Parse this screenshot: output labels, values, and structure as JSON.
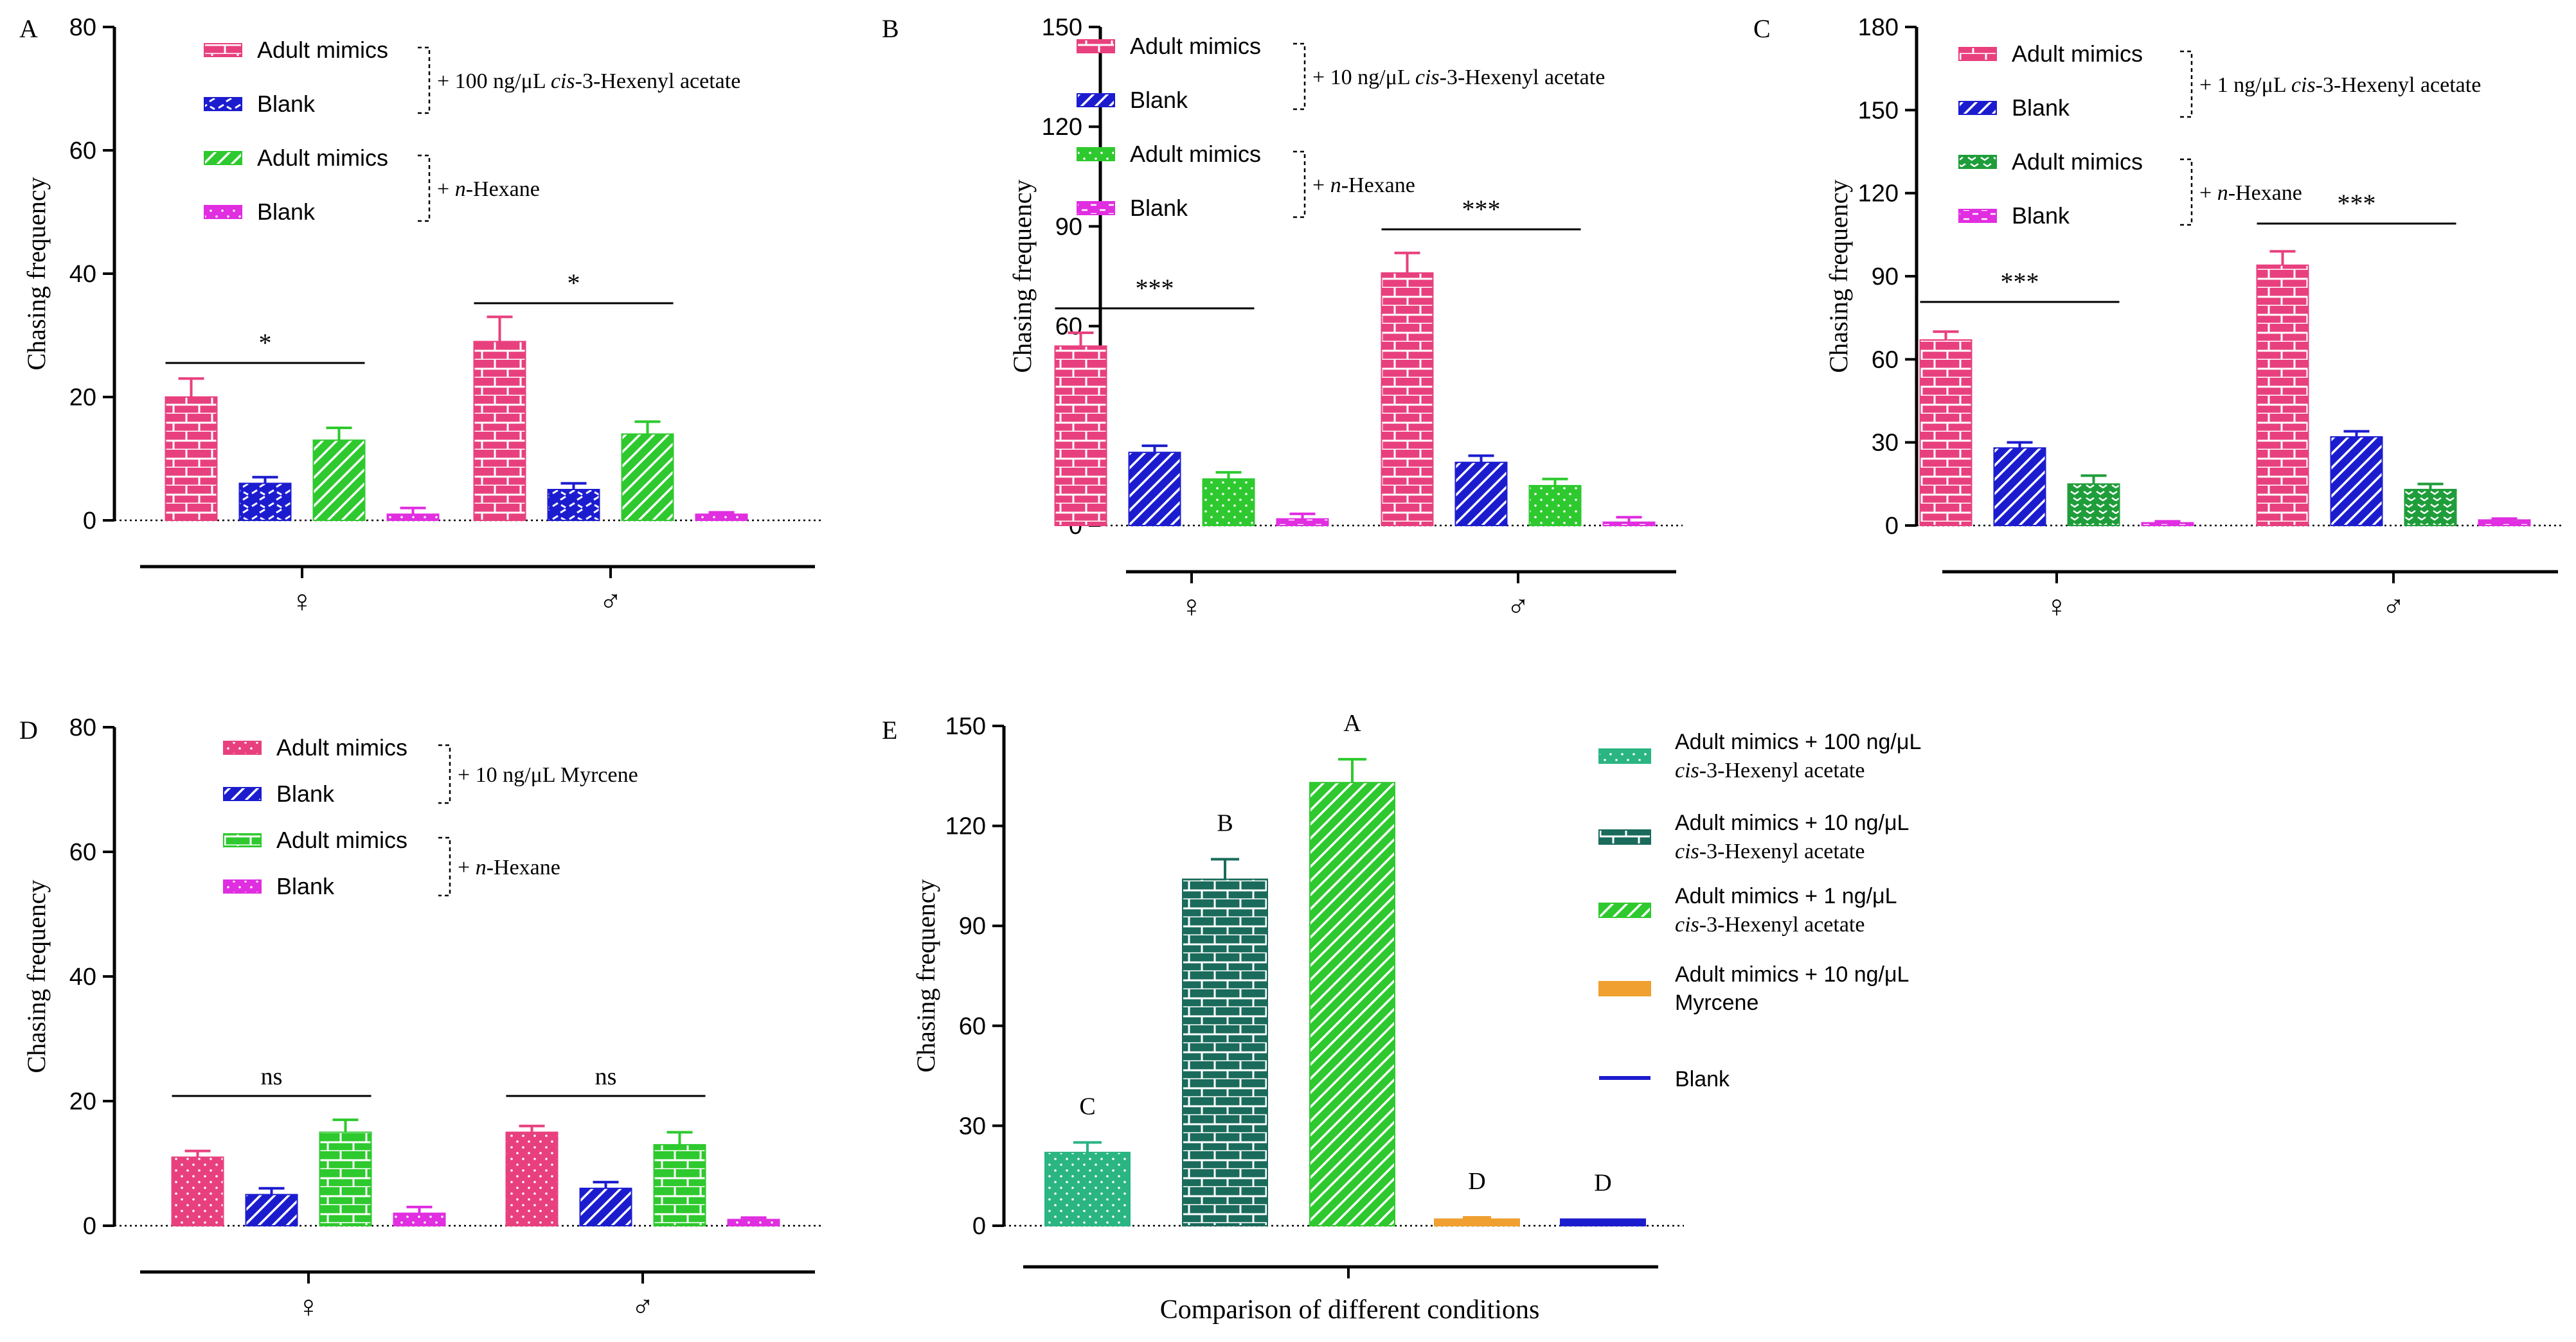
{
  "colors": {
    "pink": "#e8407e",
    "blue": "#1c1ccf",
    "green": "#2ec92e",
    "magenta": "#e02ee0",
    "teal": "#2ab583",
    "darkteal": "#1a6b5b",
    "orange": "#f0a030",
    "axis": "#000000"
  },
  "charts": [
    {
      "panel": "A",
      "type": "bar",
      "ylabel": "Chasing frequency",
      "ylim": [
        0,
        80
      ],
      "yticks": [
        0,
        20,
        40,
        60,
        80
      ],
      "groups": [
        "♀",
        "♂"
      ],
      "series": [
        {
          "name": "Adult mimics",
          "color": "pink",
          "pattern": "brick",
          "values": [
            20,
            29
          ],
          "errors": [
            3,
            4
          ]
        },
        {
          "name": "Blank",
          "color": "blue",
          "pattern": "weave",
          "values": [
            6,
            5
          ],
          "errors": [
            1,
            1
          ]
        },
        {
          "name": "Adult mimics",
          "color": "green",
          "pattern": "diag",
          "values": [
            13,
            14
          ],
          "errors": [
            2,
            2
          ]
        },
        {
          "name": "Blank",
          "color": "magenta",
          "pattern": "dots",
          "values": [
            1,
            1
          ],
          "errors": [
            1,
            0.3
          ]
        }
      ],
      "brackets": [
        "+ 100 ng/μL cis-3-Hexenyl acetate",
        "+ n-Hexane"
      ],
      "significance": [
        "*",
        "*"
      ]
    },
    {
      "panel": "B",
      "type": "bar",
      "ylabel": "Chasing frequency",
      "ylim": [
        0,
        150
      ],
      "yticks": [
        0,
        30,
        60,
        90,
        120,
        150
      ],
      "groups": [
        "♀",
        "♂"
      ],
      "series": [
        {
          "name": "Adult mimics",
          "color": "pink",
          "pattern": "brick",
          "values": [
            54,
            76
          ],
          "errors": [
            4,
            6
          ]
        },
        {
          "name": "Blank",
          "color": "blue",
          "pattern": "diag",
          "values": [
            22,
            19
          ],
          "errors": [
            2,
            2
          ]
        },
        {
          "name": "Adult mimics",
          "color": "green",
          "pattern": "dots",
          "values": [
            14,
            12
          ],
          "errors": [
            2,
            2
          ]
        },
        {
          "name": "Blank",
          "color": "magenta",
          "pattern": "hdash",
          "values": [
            2,
            1
          ],
          "errors": [
            1.5,
            1.5
          ]
        }
      ],
      "brackets": [
        "+ 10 ng/μL cis-3-Hexenyl acetate",
        "+ n-Hexane"
      ],
      "significance": [
        "***",
        "***"
      ]
    },
    {
      "panel": "C",
      "type": "bar",
      "ylabel": "Chasing frequency",
      "ylim": [
        0,
        180
      ],
      "yticks": [
        0,
        30,
        60,
        90,
        120,
        150,
        180
      ],
      "groups": [
        "♀",
        "♂"
      ],
      "series": [
        {
          "name": "Adult mimics",
          "color": "pink",
          "pattern": "brick",
          "values": [
            67,
            94
          ],
          "errors": [
            3,
            5
          ]
        },
        {
          "name": "Blank",
          "color": "blue",
          "pattern": "diag",
          "values": [
            28,
            32
          ],
          "errors": [
            2,
            2
          ]
        },
        {
          "name": "Adult mimics",
          "color": "darkgreen",
          "pattern": "check",
          "values": [
            15,
            13
          ],
          "errors": [
            3,
            2
          ]
        },
        {
          "name": "Blank",
          "color": "magenta",
          "pattern": "hdash",
          "values": [
            1,
            2
          ],
          "errors": [
            0.5,
            0.5
          ]
        }
      ],
      "brackets": [
        "+ 1 ng/μL cis-3-Hexenyl acetate",
        "+ n-Hexane"
      ],
      "significance": [
        "***",
        "***"
      ]
    },
    {
      "panel": "D",
      "type": "bar",
      "ylabel": "Chasing frequency",
      "ylim": [
        0,
        80
      ],
      "yticks": [
        0,
        20,
        40,
        60,
        80
      ],
      "groups": [
        "♀",
        "♂"
      ],
      "series": [
        {
          "name": "Adult mimics",
          "color": "pink",
          "pattern": "dots",
          "values": [
            11,
            15
          ],
          "errors": [
            1,
            1
          ]
        },
        {
          "name": "Blank",
          "color": "blue",
          "pattern": "diag",
          "values": [
            5,
            6
          ],
          "errors": [
            1,
            1
          ]
        },
        {
          "name": "Adult mimics",
          "color": "green",
          "pattern": "brick",
          "values": [
            15,
            13
          ],
          "errors": [
            2,
            2
          ]
        },
        {
          "name": "Blank",
          "color": "magenta",
          "pattern": "dots",
          "values": [
            2,
            1
          ],
          "errors": [
            1,
            0.3
          ]
        }
      ],
      "brackets": [
        "+ 10 ng/μL Myrcene",
        "+ n-Hexane"
      ],
      "significance": [
        "ns",
        "ns"
      ]
    },
    {
      "panel": "E",
      "type": "bar",
      "ylabel": "Chasing frequency",
      "xlabel": "Comparison of different conditions",
      "ylim": [
        0,
        150
      ],
      "yticks": [
        0,
        30,
        60,
        90,
        120,
        150
      ],
      "categories": [
        {
          "name": "Adult mimics + 100 ng/μL cis-3-Hexenyl acetate",
          "color": "teal",
          "pattern": "dots",
          "value": 22,
          "error": 3,
          "letter": "C"
        },
        {
          "name": "Adult mimics + 10 ng/μL cis-3-Hexenyl acetate",
          "color": "darkteal",
          "pattern": "brick",
          "value": 104,
          "error": 6,
          "letter": "B"
        },
        {
          "name": "Adult mimics + 1 ng/μL cis-3-Hexenyl acetate",
          "color": "green",
          "pattern": "diag",
          "value": 133,
          "error": 7,
          "letter": "A"
        },
        {
          "name": "Adult mimics + 10 ng/μL Myrcene",
          "color": "orange",
          "pattern": "solid",
          "value": 2,
          "error": 0.5,
          "letter": "D"
        },
        {
          "name": "Blank",
          "color": "blue",
          "pattern": "solid",
          "value": 2,
          "error": 0,
          "letter": "D"
        }
      ]
    }
  ],
  "text": {
    "A": {
      "label": "A",
      "ylabel": "Chasing frequency",
      "leg": [
        "Adult mimics",
        "Blank",
        "Adult mimics",
        "Blank"
      ],
      "b1": "+ 100 ng/μL ",
      "b1i": "cis",
      "b1r": "-3-Hexenyl acetate",
      "b2": "+ ",
      "b2i": "n",
      "b2r": "-Hexane",
      "sig1": "*",
      "sig2": "*",
      "g1": "♀",
      "g2": "♂"
    },
    "B": {
      "label": "B",
      "ylabel": "Chasing frequency",
      "leg": [
        "Adult mimics",
        "Blank",
        "Adult mimics",
        "Blank"
      ],
      "b1": "+ 10 ng/μL ",
      "b1i": "cis",
      "b1r": "-3-Hexenyl acetate",
      "b2": "+ ",
      "b2i": "n",
      "b2r": "-Hexane",
      "sig1": "***",
      "sig2": "***",
      "g1": "♀",
      "g2": "♂"
    },
    "C": {
      "label": "C",
      "ylabel": "Chasing frequency",
      "leg": [
        "Adult mimics",
        "Blank",
        "Adult mimics",
        "Blank"
      ],
      "b1": "+ 1 ng/μL ",
      "b1i": "cis",
      "b1r": "-3-Hexenyl acetate",
      "b2": "+ ",
      "b2i": "n",
      "b2r": "-Hexane",
      "sig1": "***",
      "sig2": "***",
      "g1": "♀",
      "g2": "♂"
    },
    "D": {
      "label": "D",
      "ylabel": "Chasing frequency",
      "leg": [
        "Adult mimics",
        "Blank",
        "Adult mimics",
        "Blank"
      ],
      "b1": "+ 10 ng/μL Myrcene",
      "b1i": "",
      "b1r": "",
      "b2": "+ ",
      "b2i": "n",
      "b2r": "-Hexane",
      "sig1": "ns",
      "sig2": "ns",
      "g1": "♀",
      "g2": "♂"
    },
    "E": {
      "label": "E",
      "ylabel": "Chasing frequency",
      "xlabel": "Comparison of different conditions",
      "leg": [
        [
          "Adult mimics + 100 ng/μL",
          "cis",
          "-3-Hexenyl acetate"
        ],
        [
          "Adult mimics + 10 ng/μL",
          "cis",
          "-3-Hexenyl acetate"
        ],
        [
          "Adult mimics + 1 ng/μL",
          "cis",
          "-3-Hexenyl acetate"
        ],
        [
          "Adult mimics + 10 ng/μL",
          "",
          "Myrcene"
        ],
        [
          "Blank",
          "",
          ""
        ]
      ],
      "letters": [
        "C",
        "B",
        "A",
        "D",
        "D"
      ]
    }
  }
}
